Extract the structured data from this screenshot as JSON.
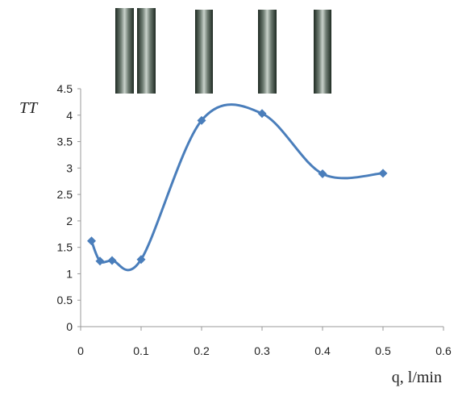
{
  "chart_data": {
    "type": "line",
    "ylabel": "TT",
    "xlabel": "q, l/min",
    "x": [
      0.018,
      0.032,
      0.052,
      0.1,
      0.2,
      0.3,
      0.4,
      0.5
    ],
    "series": [
      {
        "name": "TT",
        "color": "#4a7ebb",
        "values": [
          1.62,
          1.24,
          1.25,
          1.27,
          3.9,
          4.03,
          2.89,
          2.9
        ]
      }
    ],
    "xlim": [
      0,
      0.6
    ],
    "xticks": [
      0,
      0.1,
      0.2,
      0.3,
      0.4,
      0.5,
      0.6
    ],
    "ylim": [
      0,
      4.5
    ],
    "yticks": [
      0,
      0.5,
      1,
      1.5,
      2,
      2.5,
      3,
      3.5,
      4,
      4.5
    ],
    "grid": false,
    "smooth": true
  }
}
